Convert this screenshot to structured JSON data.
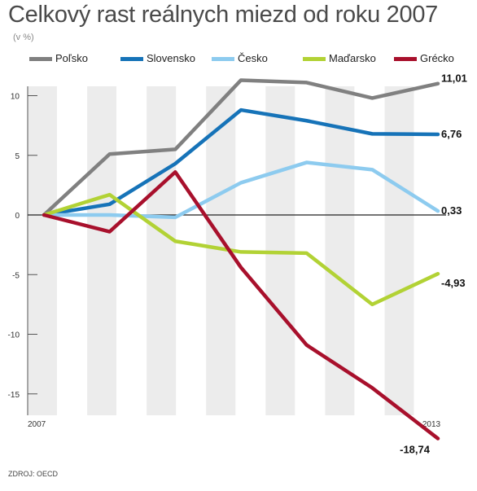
{
  "title": "Celkový rast reálnych miezd od roku 2007",
  "unit": "(v %)",
  "source": "ZDROJ: OECD",
  "chart_data": {
    "type": "line",
    "title": "Celkový rast reálnych miezd od roku 2007",
    "x": [
      2007,
      2008,
      2009,
      2010,
      2011,
      2012,
      2013
    ],
    "x_tick_labels": [
      "2007",
      "",
      "",
      "",
      "",
      "",
      "2013"
    ],
    "ylim": [
      -15,
      12
    ],
    "y_ticks": [
      10,
      5,
      0,
      -5,
      -10,
      -15
    ],
    "y_tick_labels": [
      "10",
      "5",
      "0",
      "-5",
      "-10",
      "-15"
    ],
    "legend_placement": "top",
    "series": [
      {
        "name": "Poľsko",
        "color": "#808080",
        "values": [
          0,
          5.1,
          5.5,
          11.3,
          11.1,
          9.8,
          11.01
        ],
        "end_label": "11,01"
      },
      {
        "name": "Slovensko",
        "color": "#1673b8",
        "values": [
          0,
          0.9,
          4.3,
          8.8,
          7.9,
          6.8,
          6.76
        ],
        "end_label": "6,76"
      },
      {
        "name": "Česko",
        "color": "#8dcbef",
        "values": [
          0,
          0.0,
          -0.2,
          2.7,
          4.4,
          3.8,
          0.33
        ],
        "end_label": "0,33"
      },
      {
        "name": "Maďarsko",
        "color": "#b2d235",
        "values": [
          0,
          1.7,
          -2.2,
          -3.1,
          -3.2,
          -7.5,
          -4.93
        ],
        "end_label": "-4,93"
      },
      {
        "name": "Grécko",
        "color": "#a8102c",
        "values": [
          0,
          -1.4,
          3.6,
          -4.4,
          -10.9,
          -14.5,
          -18.74
        ],
        "end_label": "-18,74"
      }
    ]
  }
}
